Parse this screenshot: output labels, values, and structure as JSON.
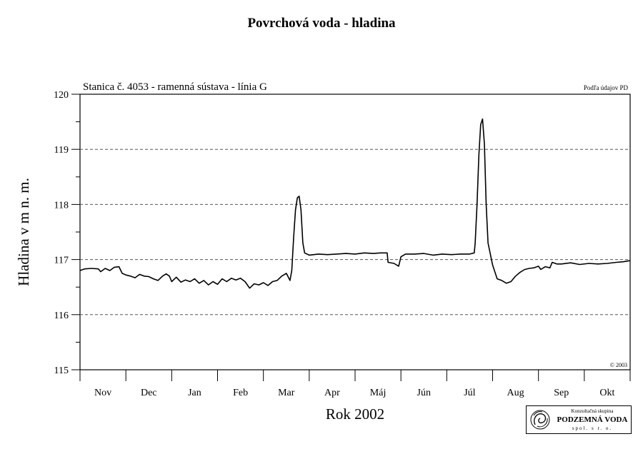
{
  "chart_data": {
    "type": "line",
    "title": "Povrchová voda - hladina",
    "subtitle": "Stanica č. 4053 - ramenná sústava - línia G",
    "source_note": "Podľa údajov PD",
    "copyright": "© 2003",
    "xlabel": "Rok 2002",
    "ylabel": "Hladina v m n. m.",
    "ylim": [
      115,
      120
    ],
    "yticks": [
      115,
      116,
      117,
      118,
      119,
      120
    ],
    "grid_y": [
      116,
      117,
      118,
      119
    ],
    "grid": true,
    "x_range_months": [
      0,
      12
    ],
    "months": [
      "Nov",
      "Dec",
      "Jan",
      "Feb",
      "Mar",
      "Apr",
      "Máj",
      "Jún",
      "Júl",
      "Aug",
      "Sep",
      "Okt"
    ],
    "series": [
      {
        "values": [
          [
            0.0,
            116.8
          ],
          [
            0.1,
            116.83
          ],
          [
            0.25,
            116.84
          ],
          [
            0.4,
            116.83
          ],
          [
            0.45,
            116.78
          ],
          [
            0.55,
            116.84
          ],
          [
            0.65,
            116.8
          ],
          [
            0.75,
            116.86
          ],
          [
            0.85,
            116.87
          ],
          [
            0.92,
            116.75
          ],
          [
            1.0,
            116.72
          ],
          [
            1.1,
            116.7
          ],
          [
            1.2,
            116.67
          ],
          [
            1.3,
            116.73
          ],
          [
            1.4,
            116.7
          ],
          [
            1.5,
            116.69
          ],
          [
            1.6,
            116.65
          ],
          [
            1.7,
            116.62
          ],
          [
            1.8,
            116.7
          ],
          [
            1.88,
            116.74
          ],
          [
            1.95,
            116.7
          ],
          [
            2.0,
            116.6
          ],
          [
            2.1,
            116.68
          ],
          [
            2.2,
            116.59
          ],
          [
            2.3,
            116.63
          ],
          [
            2.4,
            116.6
          ],
          [
            2.5,
            116.65
          ],
          [
            2.6,
            116.57
          ],
          [
            2.7,
            116.62
          ],
          [
            2.8,
            116.54
          ],
          [
            2.9,
            116.6
          ],
          [
            3.0,
            116.55
          ],
          [
            3.1,
            116.65
          ],
          [
            3.2,
            116.6
          ],
          [
            3.3,
            116.66
          ],
          [
            3.4,
            116.63
          ],
          [
            3.5,
            116.66
          ],
          [
            3.6,
            116.6
          ],
          [
            3.7,
            116.48
          ],
          [
            3.8,
            116.56
          ],
          [
            3.9,
            116.54
          ],
          [
            4.0,
            116.58
          ],
          [
            4.1,
            116.53
          ],
          [
            4.2,
            116.6
          ],
          [
            4.3,
            116.62
          ],
          [
            4.4,
            116.7
          ],
          [
            4.5,
            116.75
          ],
          [
            4.58,
            116.62
          ],
          [
            4.62,
            116.8
          ],
          [
            4.66,
            117.4
          ],
          [
            4.7,
            117.9
          ],
          [
            4.74,
            118.12
          ],
          [
            4.78,
            118.15
          ],
          [
            4.82,
            117.9
          ],
          [
            4.86,
            117.3
          ],
          [
            4.9,
            117.12
          ],
          [
            5.0,
            117.08
          ],
          [
            5.2,
            117.1
          ],
          [
            5.4,
            117.09
          ],
          [
            5.6,
            117.1
          ],
          [
            5.8,
            117.11
          ],
          [
            6.0,
            117.1
          ],
          [
            6.2,
            117.12
          ],
          [
            6.4,
            117.11
          ],
          [
            6.55,
            117.12
          ],
          [
            6.7,
            117.12
          ],
          [
            6.72,
            116.95
          ],
          [
            6.85,
            116.93
          ],
          [
            6.95,
            116.88
          ],
          [
            7.0,
            117.05
          ],
          [
            7.1,
            117.1
          ],
          [
            7.3,
            117.1
          ],
          [
            7.5,
            117.11
          ],
          [
            7.7,
            117.08
          ],
          [
            7.9,
            117.1
          ],
          [
            8.1,
            117.09
          ],
          [
            8.3,
            117.1
          ],
          [
            8.5,
            117.1
          ],
          [
            8.6,
            117.12
          ],
          [
            8.62,
            117.3
          ],
          [
            8.66,
            118.0
          ],
          [
            8.7,
            118.9
          ],
          [
            8.74,
            119.45
          ],
          [
            8.78,
            119.55
          ],
          [
            8.82,
            119.1
          ],
          [
            8.86,
            118.0
          ],
          [
            8.9,
            117.3
          ],
          [
            9.0,
            116.9
          ],
          [
            9.1,
            116.65
          ],
          [
            9.2,
            116.62
          ],
          [
            9.3,
            116.57
          ],
          [
            9.4,
            116.6
          ],
          [
            9.5,
            116.7
          ],
          [
            9.6,
            116.77
          ],
          [
            9.7,
            116.82
          ],
          [
            9.8,
            116.84
          ],
          [
            9.9,
            116.85
          ],
          [
            10.0,
            116.88
          ],
          [
            10.05,
            116.82
          ],
          [
            10.15,
            116.87
          ],
          [
            10.25,
            116.85
          ],
          [
            10.3,
            116.95
          ],
          [
            10.4,
            116.92
          ],
          [
            10.5,
            116.92
          ],
          [
            10.7,
            116.94
          ],
          [
            10.9,
            116.91
          ],
          [
            11.1,
            116.93
          ],
          [
            11.3,
            116.92
          ],
          [
            11.5,
            116.93
          ],
          [
            11.7,
            116.95
          ],
          [
            11.85,
            116.96
          ],
          [
            12.0,
            116.98
          ]
        ]
      }
    ]
  },
  "logo": {
    "line1": "Konzultačná skupina",
    "line2": "PODZEMNÁ VODA",
    "line3": "spol. s r. o."
  }
}
